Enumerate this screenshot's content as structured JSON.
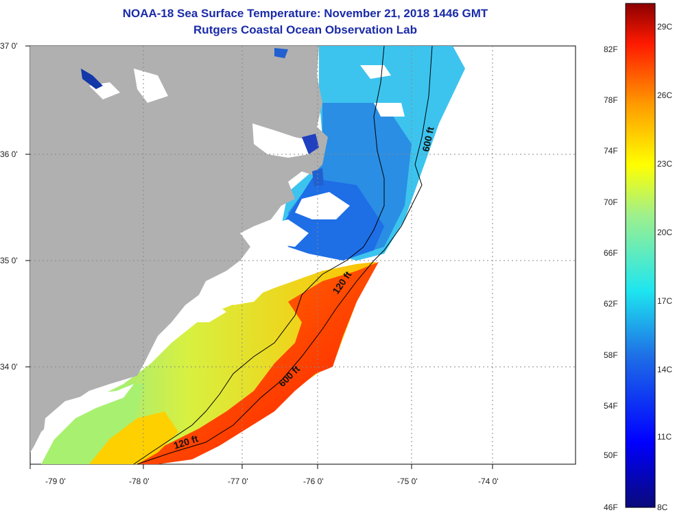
{
  "title": "NOAA-18 Sea Surface Temperature:  November 21, 2018 1446 GMT",
  "subtitle": "Rutgers Coastal Ocean Observation Lab",
  "map": {
    "lon_ticks": [
      "-79 0'",
      "-78 0'",
      "-77 0'",
      "-76 0'",
      "-75 0'",
      "-74 0'"
    ],
    "lat_ticks": [
      "37 0'",
      "36 0'",
      "35 0'",
      "34 0'"
    ],
    "contour_labels": [
      "600 ft",
      "120 ft",
      "600 ft",
      "120 ft"
    ],
    "colors": {
      "land": "#b0b0b0",
      "cloud": "#ffffff",
      "contour": "#000000"
    }
  },
  "colorbar": {
    "range_f": [
      46,
      84
    ],
    "labels_f": [
      "82F",
      "78F",
      "74F",
      "70F",
      "66F",
      "62F",
      "58F",
      "54F",
      "50F",
      "46F"
    ],
    "labels_c": [
      "29C",
      "26C",
      "23C",
      "20C",
      "17C",
      "14C",
      "11C",
      "8C"
    ],
    "gradient_stops": [
      "#0a0a7a",
      "#0000ff",
      "#1e6ee6",
      "#1ee6f0",
      "#9ff08c",
      "#ffff00",
      "#ff9a00",
      "#ff1a00",
      "#8b0000"
    ]
  }
}
